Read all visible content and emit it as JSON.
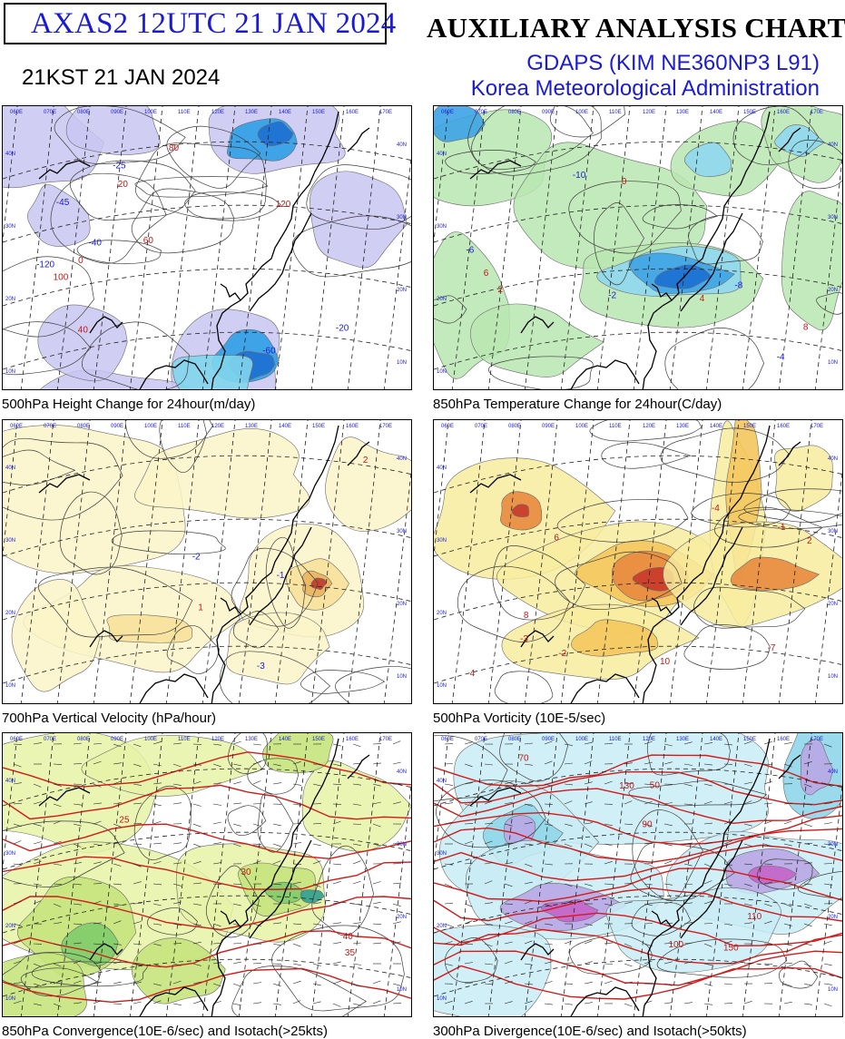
{
  "header": {
    "product_id": "AXAS2  12UTC 21 JAN 2024",
    "kst_time": "21KST 21 JAN 2024",
    "chart_title": "AUXILIARY ANALYSIS CHART II",
    "model": "GDAPS (KIM NE360NP3 L91)",
    "agency": "Korea Meteorological Administration"
  },
  "panels": [
    {
      "caption": "500hPa Height Change for 24hour(m/day)",
      "palette": {
        "base": "#ffffff",
        "a": "#c9c6f2",
        "b": "#a59fe6",
        "c": "#7fd6ec",
        "d": "#2f9ee6",
        "e": "#1d6fd1"
      },
      "labels": [
        "40",
        "60",
        "80",
        "100",
        "120",
        "-120",
        "-60",
        "-40",
        "-20",
        "-25",
        "-45",
        "20",
        "0"
      ]
    },
    {
      "caption": "850hPa Temperature Change for 24hour(C/day)",
      "palette": {
        "base": "#ffffff",
        "a": "#b9e6b0",
        "b": "#7cc9a5",
        "c": "#8fd8f0",
        "d": "#3da3e6",
        "e": "#1b6fd0"
      },
      "labels": [
        "-2",
        "-4",
        "-6",
        "-8",
        "-10",
        "2",
        "4",
        "6",
        "8",
        "0"
      ]
    },
    {
      "caption": "700hPa Vertical Velocity (hPa/hour)",
      "palette": {
        "base": "#ffffff",
        "a": "#fbf4c8",
        "b": "#f7e29a",
        "c": "#e9b25f",
        "d": "#c2382c",
        "e": "#7f1b1b"
      },
      "labels": [
        "-1",
        "-2",
        "-3",
        "1",
        "2"
      ]
    },
    {
      "caption": "500hPa Vorticity (10E-5/sec)",
      "palette": {
        "base": "#ffffff",
        "a": "#f8ec9f",
        "b": "#f4c65d",
        "c": "#e88a3e",
        "d": "#c8382a",
        "e": "#8a1717"
      },
      "labels": [
        "2",
        "4",
        "6",
        "8",
        "10",
        "-2",
        "-4",
        "-7",
        "-3",
        "-1"
      ]
    },
    {
      "caption": "850hPa Convergence(10E-6/sec) and Isotach(>25kts)",
      "palette": {
        "base": "#ffffff",
        "a": "#e6f2a6",
        "b": "#c6e47c",
        "c": "#7fcb6a",
        "d": "#2f9e8f",
        "e": "#6a3ca8"
      },
      "labels": [
        "25",
        "30",
        "35",
        "40"
      ]
    },
    {
      "caption": "300hPa Divergence(10E-6/sec) and Isotach(>50kts)",
      "palette": {
        "base": "#ffffff",
        "a": "#c9ecf4",
        "b": "#8fd6ea",
        "c": "#b9a7e6",
        "d": "#c465c9",
        "e": "#9b2aa8"
      },
      "labels": [
        "50",
        "70",
        "90",
        "100",
        "110",
        "130",
        "150"
      ]
    }
  ],
  "map_grid": {
    "lon_labels": [
      "060E",
      "070E",
      "080E",
      "090E",
      "100E",
      "110E",
      "120E",
      "130E",
      "140E",
      "150E",
      "160E",
      "170E"
    ],
    "lat_labels": [
      "10N",
      "20N",
      "30N",
      "40N"
    ]
  }
}
